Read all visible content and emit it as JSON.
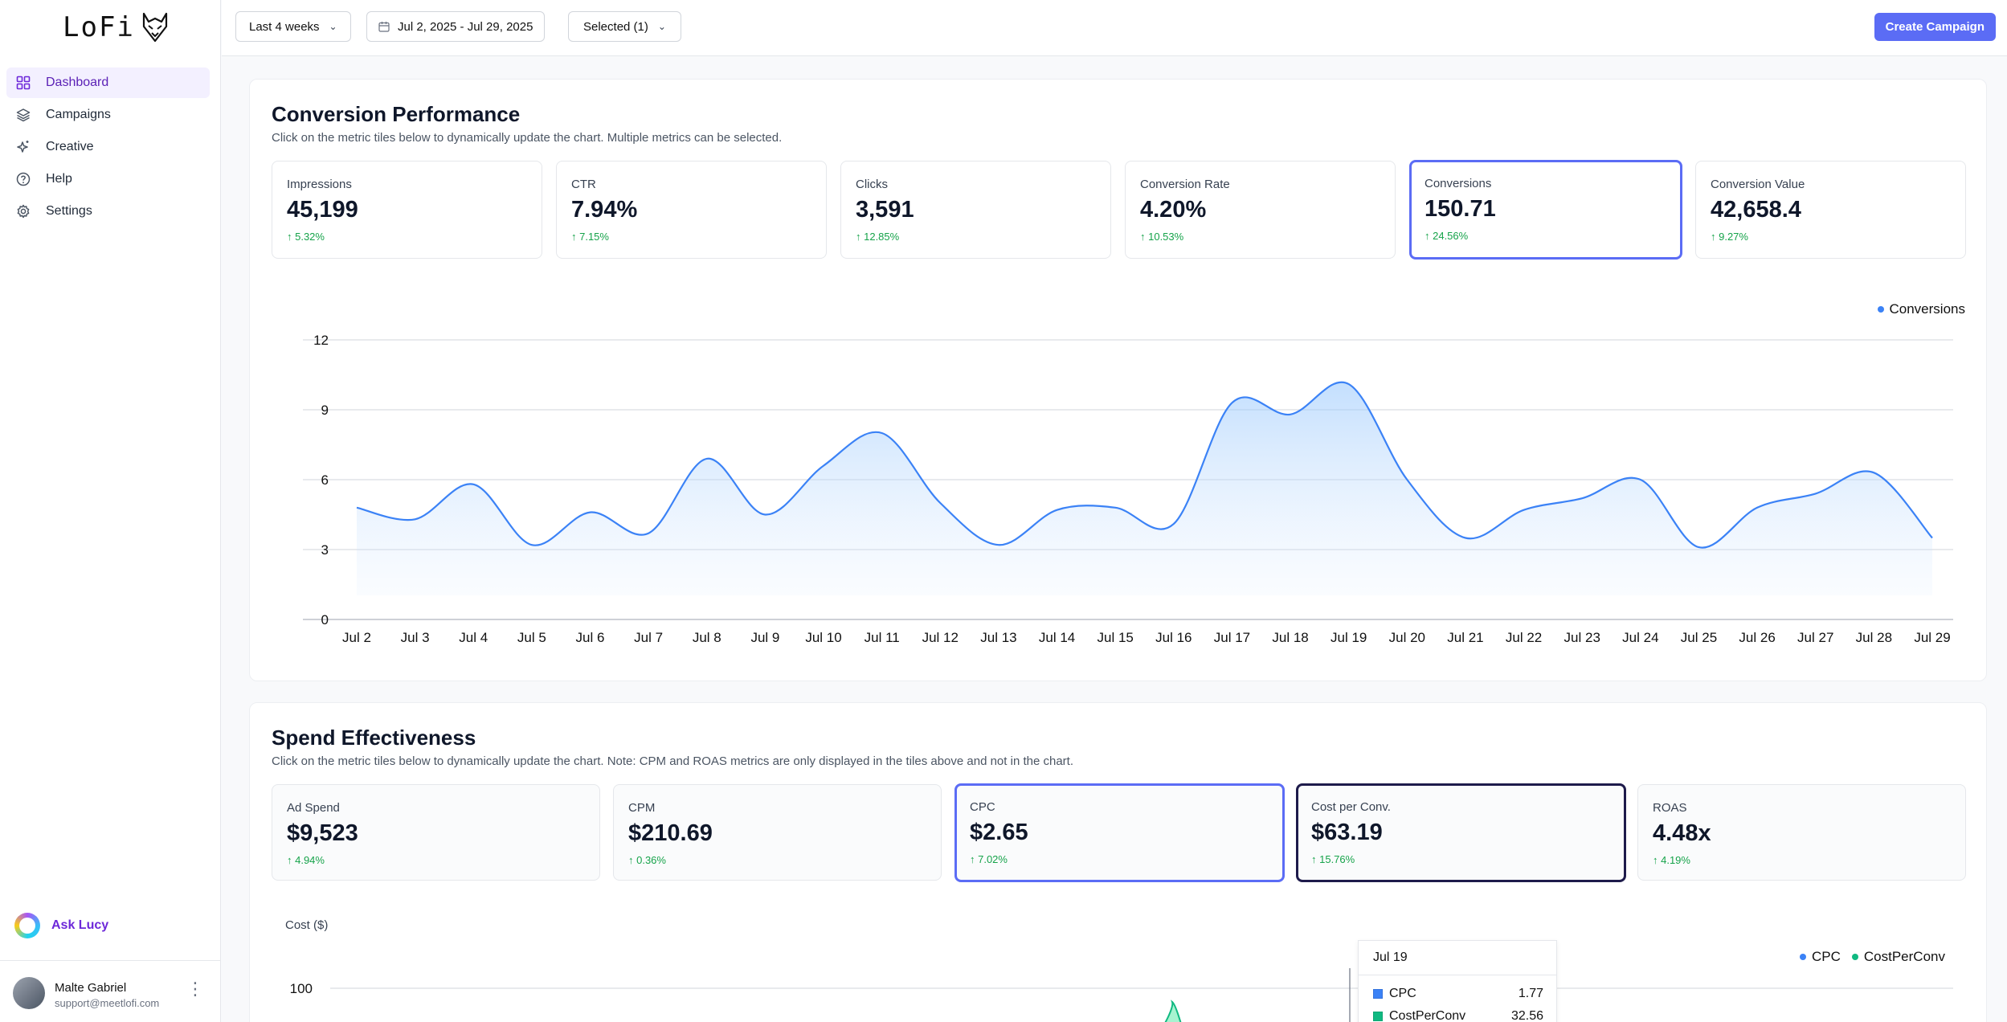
{
  "app": {
    "logo_text": "LoFi",
    "logo_icon": "fox-icon"
  },
  "sidebar": {
    "items": [
      {
        "label": "Dashboard",
        "icon": "grid-icon",
        "active": true
      },
      {
        "label": "Campaigns",
        "icon": "layers-icon",
        "active": false
      },
      {
        "label": "Creative",
        "icon": "sparkle-icon",
        "active": false
      },
      {
        "label": "Help",
        "icon": "help-icon",
        "active": false
      },
      {
        "label": "Settings",
        "icon": "gear-icon",
        "active": false
      }
    ],
    "ask_lucy": "Ask Lucy",
    "user": {
      "name": "Malte Gabriel",
      "email": "support@meetlofi.com"
    }
  },
  "topbar": {
    "range_select": "Last 4 weeks",
    "date_range": "Jul 2, 2025 - Jul 29, 2025",
    "selected_filter": "Selected (1)",
    "create_campaign": "Create Campaign"
  },
  "colors": {
    "accent": "#5b6cf5",
    "line_blue": "#3b82f6",
    "cost_green": "#10b981",
    "positive": "#16a34a"
  },
  "conversion": {
    "title": "Conversion Performance",
    "subtitle": "Click on the metric tiles below to dynamically update the chart. Multiple metrics can be selected.",
    "tiles": [
      {
        "label": "Impressions",
        "value": "45,199",
        "delta": "↑ 5.32%"
      },
      {
        "label": "CTR",
        "value": "7.94%",
        "delta": "↑ 7.15%"
      },
      {
        "label": "Clicks",
        "value": "3,591",
        "delta": "↑ 12.85%"
      },
      {
        "label": "Conversion Rate",
        "value": "4.20%",
        "delta": "↑ 10.53%"
      },
      {
        "label": "Conversions",
        "value": "150.71",
        "delta": "↑ 24.56%",
        "selected": true
      },
      {
        "label": "Conversion Value",
        "value": "42,658.4",
        "delta": "↑ 9.27%"
      }
    ]
  },
  "spend": {
    "title": "Spend Effectiveness",
    "subtitle": "Click on the metric tiles below to dynamically update the chart. Note: CPM and ROAS metrics are only displayed in the tiles above and not in the chart.",
    "tiles": [
      {
        "label": "Ad Spend",
        "value": "$9,523",
        "delta": "↑ 4.94%"
      },
      {
        "label": "CPM",
        "value": "$210.69",
        "delta": "↑ 0.36%"
      },
      {
        "label": "CPC",
        "value": "$2.65",
        "delta": "↑ 7.02%",
        "selected": true
      },
      {
        "label": "Cost per Conv.",
        "value": "$63.19",
        "delta": "↑ 15.76%",
        "selected": true
      },
      {
        "label": "ROAS",
        "value": "4.48x",
        "delta": "↑ 4.19%"
      }
    ],
    "tooltip": {
      "date": "Jul 19",
      "rows": [
        {
          "name": "CPC",
          "value": "1.77"
        },
        {
          "name": "CostPerConv",
          "value": "32.56"
        }
      ]
    }
  },
  "chart_data": [
    {
      "type": "area",
      "x": [
        "Jul 2",
        "Jul 3",
        "Jul 4",
        "Jul 5",
        "Jul 6",
        "Jul 7",
        "Jul 8",
        "Jul 9",
        "Jul 10",
        "Jul 11",
        "Jul 12",
        "Jul 13",
        "Jul 14",
        "Jul 15",
        "Jul 16",
        "Jul 17",
        "Jul 18",
        "Jul 19",
        "Jul 20",
        "Jul 21",
        "Jul 22",
        "Jul 23",
        "Jul 24",
        "Jul 25",
        "Jul 26",
        "Jul 27",
        "Jul 28",
        "Jul 29"
      ],
      "series": [
        {
          "name": "Conversions",
          "values": [
            4.8,
            4.3,
            5.8,
            3.2,
            4.6,
            3.7,
            6.9,
            4.5,
            6.6,
            8.0,
            5.0,
            3.2,
            4.7,
            4.8,
            4.1,
            9.3,
            8.8,
            10.1,
            6.0,
            3.5,
            4.7,
            5.2,
            6.0,
            3.1,
            4.8,
            5.4,
            6.3,
            3.5
          ]
        }
      ],
      "yticks": [
        0,
        3,
        6,
        9,
        12
      ],
      "ylim": [
        0,
        12
      ],
      "legend": "top-right",
      "grid": true
    },
    {
      "type": "area",
      "ylabel": "Cost ($)",
      "series": [
        {
          "name": "CPC"
        },
        {
          "name": "CostPerConv"
        }
      ],
      "yticks": [
        100
      ],
      "legend": "top-right",
      "grid": true
    }
  ]
}
